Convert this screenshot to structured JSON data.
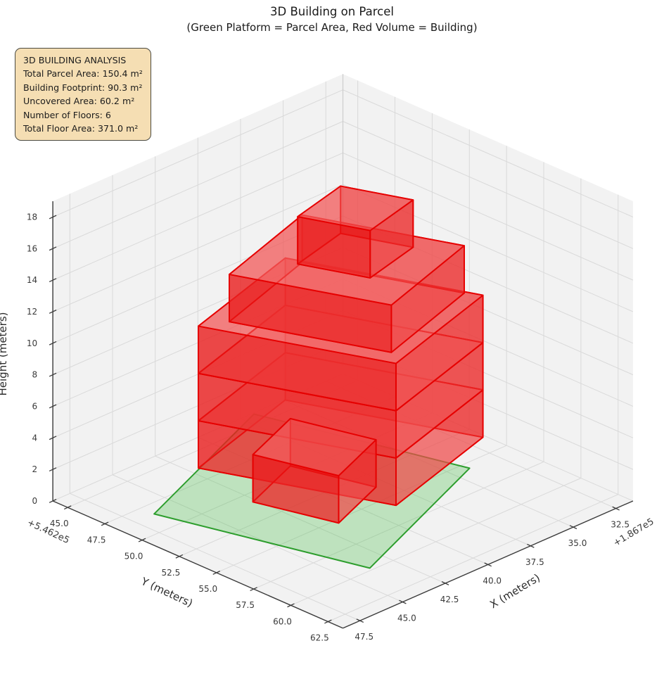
{
  "title": {
    "line1": "3D Building on Parcel",
    "line2": "(Green Platform = Parcel Area, Red Volume = Building)"
  },
  "info_box": {
    "lines": [
      "3D BUILDING ANALYSIS",
      "Total Parcel Area: 150.4 m²",
      "Building Footprint: 90.3 m²",
      "Uncovered Area: 60.2 m²",
      "Number of Floors: 6",
      "Total Floor Area: 371.0 m²"
    ]
  },
  "chart_data": {
    "type": "3d-building-plot",
    "x_axis": {
      "label": "X (meters)",
      "offset_text": "+1.867e5",
      "tick_values": [
        32.5,
        35.0,
        37.5,
        40.0,
        42.5,
        45.0,
        47.5
      ],
      "tick_labels": [
        "32.5",
        "35.0",
        "37.5",
        "40.0",
        "42.5",
        "45.0",
        "47.5"
      ],
      "range": [
        31.5,
        48.5
      ]
    },
    "y_axis": {
      "label": "Y (meters)",
      "offset_text": "+5.462e5",
      "tick_values": [
        45.0,
        47.5,
        50.0,
        52.5,
        55.0,
        57.5,
        60.0,
        62.5
      ],
      "tick_labels": [
        "45.0",
        "47.5",
        "50.0",
        "52.5",
        "55.0",
        "57.5",
        "60.0",
        "62.5"
      ],
      "range": [
        44.0,
        63.5
      ]
    },
    "z_axis": {
      "label": "Height (meters)",
      "tick_values": [
        0,
        2,
        4,
        6,
        8,
        10,
        12,
        14,
        16,
        18
      ],
      "tick_labels": [
        "0",
        "2",
        "4",
        "6",
        "8",
        "10",
        "12",
        "14",
        "16",
        "18"
      ],
      "range": [
        0,
        19
      ]
    },
    "grid": true,
    "parcel": {
      "polygon": [
        [
          46.4,
          48.4
        ],
        [
          43.7,
          59.8
        ],
        [
          34.1,
          55.5
        ],
        [
          36.8,
          44.1
        ]
      ],
      "z": 0,
      "fill": "rgba(70,190,70,0.30)",
      "edge": "#2e9e2e"
    },
    "building": {
      "edge_color": "#e60000",
      "face_left": "rgba(232,25,25,0.62)",
      "face_right": "rgba(238,62,62,0.52)",
      "face_top": "rgba(244,105,105,0.50)",
      "face_bottom": "rgba(244,105,105,0.42)",
      "floors": [
        {
          "name": "floor-1",
          "z0": 0,
          "z1": 3,
          "footprint": [
            [
              42.7,
              50.8
            ],
            [
              41.6,
              55.3
            ],
            [
              38.1,
              53.8
            ],
            [
              39.2,
              49.3
            ]
          ]
        },
        {
          "name": "floor-2",
          "z0": 3,
          "z1": 6,
          "footprint": [
            [
              45.2,
              50.0
            ],
            [
              41.9,
              59.5
            ],
            [
              34.8,
              57.2
            ],
            [
              38.1,
              47.7
            ]
          ]
        },
        {
          "name": "floor-3",
          "z0": 6,
          "z1": 9,
          "footprint": [
            [
              45.2,
              50.0
            ],
            [
              41.9,
              59.5
            ],
            [
              34.8,
              57.2
            ],
            [
              38.1,
              47.7
            ]
          ]
        },
        {
          "name": "floor-4",
          "z0": 9,
          "z1": 12,
          "footprint": [
            [
              45.2,
              50.0
            ],
            [
              41.9,
              59.5
            ],
            [
              34.8,
              57.2
            ],
            [
              38.1,
              47.7
            ]
          ]
        },
        {
          "name": "floor-5",
          "z0": 12,
          "z1": 15,
          "footprint": [
            [
              44.0,
              50.7
            ],
            [
              41.3,
              58.5
            ],
            [
              35.2,
              56.4
            ],
            [
              37.9,
              48.6
            ]
          ]
        },
        {
          "name": "floor-6",
          "z0": 15,
          "z1": 18,
          "footprint": [
            [
              41.3,
              52.2
            ],
            [
              40.1,
              55.7
            ],
            [
              36.8,
              54.8
            ],
            [
              38.0,
              51.3
            ]
          ]
        }
      ],
      "draw_order": [
        "floor-2",
        "floor-3",
        "floor-4",
        "floor-5",
        "floor-6",
        "floor-1"
      ]
    },
    "stats": {
      "total_parcel_area_m2": 150.4,
      "building_footprint_m2": 90.3,
      "uncovered_area_m2": 60.2,
      "number_of_floors": 6,
      "total_floor_area_m2": 371.0
    },
    "legend_position": "none",
    "pane_color": "#f2f2f2",
    "grid_color": "#d9d9d9",
    "spine_color": "#3a3a3a"
  }
}
